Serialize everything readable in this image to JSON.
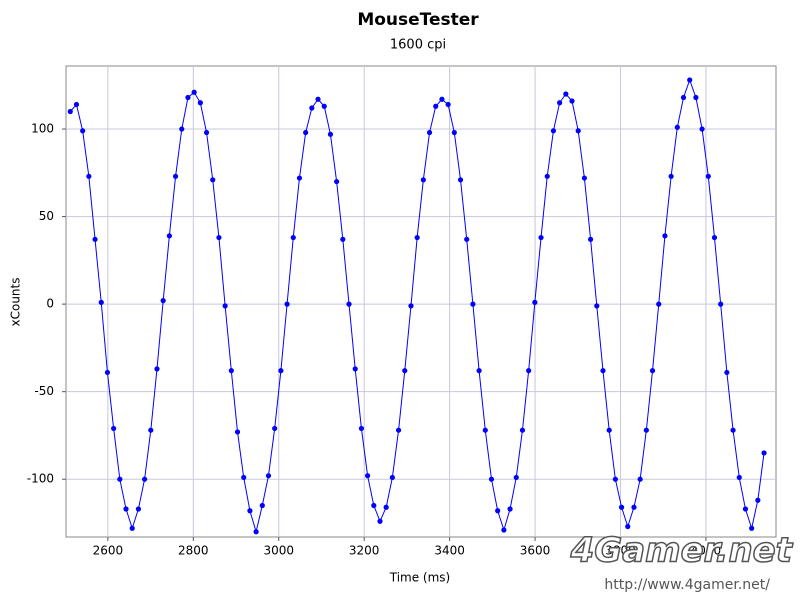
{
  "chart_data": {
    "type": "scatter",
    "title": "MouseTester",
    "subtitle": "1600 cpi",
    "x_label": "Time (ms)",
    "y_label": "xCounts",
    "watermark": "4Gamer.net",
    "watermark_url": "http://www.4gamer.net/",
    "xlim": [
      2502,
      4164
    ],
    "ylim": [
      -133,
      136
    ],
    "xticks": [
      2600,
      2800,
      3000,
      3200,
      3400,
      3600,
      3800,
      4000
    ],
    "yticks": [
      -100,
      -50,
      0,
      50,
      100
    ],
    "grid": true,
    "series": [
      {
        "color": "#0000ff",
        "x": [
          2512,
          2526.5,
          2541,
          2555.5,
          2570,
          2584.5,
          2599,
          2613.5,
          2628,
          2642.5,
          2657,
          2671.5,
          2686,
          2700.5,
          2715,
          2729.5,
          2744,
          2758.5,
          2773,
          2787.5,
          2802,
          2816.5,
          2831,
          2845.5,
          2860,
          2874.5,
          2889,
          2903.5,
          2918,
          2932.5,
          2947,
          2961.5,
          2976,
          2990.5,
          3005,
          3019.5,
          3034,
          3048.5,
          3063,
          3077.5,
          3092,
          3106.5,
          3121,
          3135.5,
          3150,
          3164.5,
          3179,
          3193.5,
          3208,
          3222.5,
          3237,
          3251.5,
          3266,
          3280.5,
          3295,
          3309.5,
          3324,
          3338.5,
          3353,
          3367.5,
          3382,
          3396.5,
          3411,
          3425.5,
          3440,
          3454.5,
          3469,
          3483.5,
          3498,
          3512.5,
          3527,
          3541.5,
          3556,
          3570.5,
          3585,
          3599.5,
          3614,
          3628.5,
          3643,
          3657.5,
          3672,
          3686.5,
          3701,
          3715.5,
          3730,
          3744.5,
          3759,
          3773.5,
          3788,
          3802.5,
          3817,
          3831.5,
          3846,
          3860.5,
          3875,
          3889.5,
          3904,
          3918.5,
          3933,
          3947.5,
          3962,
          3976.5,
          3991,
          4005.5,
          4020,
          4034.5,
          4049,
          4063.5,
          4078,
          4092.5,
          4107,
          4121.5,
          4136
        ],
        "values": [
          110,
          114,
          99,
          73,
          37,
          1,
          -39,
          -71,
          -100,
          -117,
          -128,
          -117,
          -100,
          -72,
          -37,
          2,
          39,
          73,
          100,
          118,
          121,
          115,
          98,
          71,
          38,
          -1,
          -38,
          -73,
          -99,
          -118,
          -130,
          -115,
          -98,
          -71,
          -38,
          0,
          38,
          72,
          98,
          112,
          117,
          113,
          97,
          70,
          37,
          0,
          -37,
          -71,
          -98,
          -115,
          -124,
          -116,
          -99,
          -72,
          -38,
          -1,
          38,
          71,
          98,
          113,
          117,
          114,
          98,
          71,
          37,
          0,
          -38,
          -72,
          -100,
          -118,
          -129,
          -117,
          -99,
          -72,
          -38,
          1,
          38,
          73,
          99,
          115,
          120,
          116,
          99,
          72,
          37,
          -1,
          -38,
          -72,
          -100,
          -116,
          -127,
          -116,
          -100,
          -72,
          -38,
          0,
          39,
          73,
          101,
          118,
          128,
          118,
          100,
          73,
          38,
          0,
          -39,
          -72,
          -99,
          -117,
          -128,
          -112,
          -85
        ]
      }
    ]
  }
}
